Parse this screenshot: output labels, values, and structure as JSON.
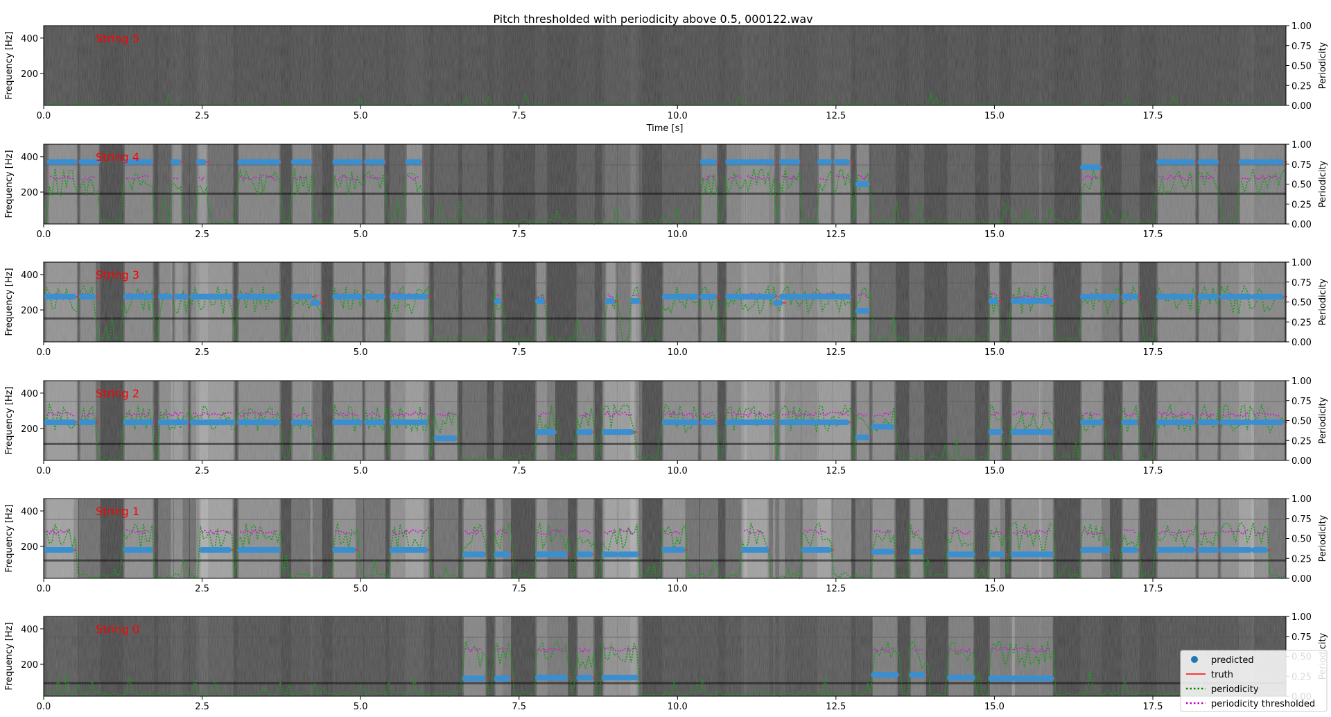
{
  "chart_data": {
    "type": "spectrogram-multipanel",
    "title": "Pitch thresholded with periodicity above 0.5, 000122.wav",
    "x_range": [
      0,
      19.6
    ],
    "x_ticks": [
      "0.0",
      "2.5",
      "5.0",
      "7.5",
      "10.0",
      "12.5",
      "15.0",
      "17.5"
    ],
    "x_tick_values": [
      0,
      2.5,
      5,
      7.5,
      10,
      12.5,
      15,
      17.5
    ],
    "xlabel": "Time [s]",
    "ylabel": "Frequency [Hz]",
    "y_range": [
      20,
      470
    ],
    "y_ticks": [
      "200",
      "400"
    ],
    "y_tick_values": [
      200,
      400
    ],
    "ylabel_right": "Periodicity",
    "y_right_range": [
      0,
      1
    ],
    "y_right_ticks": [
      "0.00",
      "0.25",
      "0.50",
      "0.75",
      "1.00"
    ],
    "y_right_tick_values": [
      0,
      0.25,
      0.5,
      0.75,
      1
    ],
    "grid": false,
    "legend_placement": "bottom-right",
    "legend": [
      {
        "label": "predicted",
        "color": "#1f77b4",
        "style": "dot"
      },
      {
        "label": "truth",
        "color": "#ff0000",
        "style": "line"
      },
      {
        "label": "periodicity",
        "color": "#008000",
        "style": "dotted"
      },
      {
        "label": "periodicity thresholded",
        "color": "#bf00bf",
        "style": "dotted"
      }
    ],
    "panels": [
      {
        "label": "String 5",
        "show_xlabel": true,
        "notes": []
      },
      {
        "label": "String 4",
        "show_xlabel": false,
        "notes": [
          {
            "t0": 0.1,
            "t1": 0.5,
            "f": 370
          },
          {
            "t0": 0.6,
            "t1": 0.85,
            "f": 370
          },
          {
            "t0": 1.3,
            "t1": 1.7,
            "f": 370
          },
          {
            "t0": 2.05,
            "t1": 2.15,
            "f": 370
          },
          {
            "t0": 2.45,
            "t1": 2.55,
            "f": 370
          },
          {
            "t0": 3.1,
            "t1": 3.7,
            "f": 370
          },
          {
            "t0": 3.95,
            "t1": 4.2,
            "f": 370
          },
          {
            "t0": 4.6,
            "t1": 5.0,
            "f": 370
          },
          {
            "t0": 5.1,
            "t1": 5.35,
            "f": 370
          },
          {
            "t0": 5.75,
            "t1": 5.95,
            "f": 370
          },
          {
            "t0": 10.4,
            "t1": 10.6,
            "f": 370
          },
          {
            "t0": 10.8,
            "t1": 11.05,
            "f": 370
          },
          {
            "t0": 11.1,
            "t1": 11.5,
            "f": 370
          },
          {
            "t0": 11.65,
            "t1": 11.9,
            "f": 370
          },
          {
            "t0": 12.25,
            "t1": 12.4,
            "f": 370
          },
          {
            "t0": 12.5,
            "t1": 12.7,
            "f": 370
          },
          {
            "t0": 12.85,
            "t1": 13.0,
            "f": 245
          },
          {
            "t0": 16.4,
            "t1": 16.65,
            "f": 340
          },
          {
            "t0": 17.6,
            "t1": 18.15,
            "f": 370
          },
          {
            "t0": 18.25,
            "t1": 18.5,
            "f": 370
          },
          {
            "t0": 18.9,
            "t1": 19.05,
            "f": 370
          },
          {
            "t0": 19.1,
            "t1": 19.55,
            "f": 370
          }
        ]
      },
      {
        "label": "String 3",
        "show_xlabel": false,
        "notes": [
          {
            "t0": 0.05,
            "t1": 0.5,
            "f": 275
          },
          {
            "t0": 0.6,
            "t1": 0.8,
            "f": 275
          },
          {
            "t0": 1.3,
            "t1": 1.7,
            "f": 275
          },
          {
            "t0": 1.85,
            "t1": 2.0,
            "f": 275
          },
          {
            "t0": 2.1,
            "t1": 2.25,
            "f": 275
          },
          {
            "t0": 2.35,
            "t1": 2.95,
            "f": 275
          },
          {
            "t0": 3.1,
            "t1": 3.7,
            "f": 275
          },
          {
            "t0": 3.95,
            "t1": 4.2,
            "f": 275
          },
          {
            "t0": 4.25,
            "t1": 4.35,
            "f": 240
          },
          {
            "t0": 4.6,
            "t1": 5.0,
            "f": 275
          },
          {
            "t0": 5.1,
            "t1": 5.35,
            "f": 275
          },
          {
            "t0": 5.5,
            "t1": 6.05,
            "f": 275
          },
          {
            "t0": 7.15,
            "t1": 7.2,
            "f": 250
          },
          {
            "t0": 7.8,
            "t1": 7.9,
            "f": 250
          },
          {
            "t0": 8.9,
            "t1": 9.0,
            "f": 250
          },
          {
            "t0": 9.3,
            "t1": 9.4,
            "f": 250
          },
          {
            "t0": 9.8,
            "t1": 10.3,
            "f": 275
          },
          {
            "t0": 10.4,
            "t1": 10.6,
            "f": 275
          },
          {
            "t0": 10.8,
            "t1": 11.5,
            "f": 275
          },
          {
            "t0": 11.55,
            "t1": 11.65,
            "f": 240
          },
          {
            "t0": 11.65,
            "t1": 11.95,
            "f": 275
          },
          {
            "t0": 12.0,
            "t1": 12.7,
            "f": 275
          },
          {
            "t0": 12.85,
            "t1": 13.0,
            "f": 195
          },
          {
            "t0": 14.95,
            "t1": 15.05,
            "f": 250
          },
          {
            "t0": 15.3,
            "t1": 15.7,
            "f": 250
          },
          {
            "t0": 15.75,
            "t1": 15.9,
            "f": 250
          },
          {
            "t0": 16.4,
            "t1": 16.95,
            "f": 275
          },
          {
            "t0": 17.05,
            "t1": 17.25,
            "f": 275
          },
          {
            "t0": 17.6,
            "t1": 18.15,
            "f": 275
          },
          {
            "t0": 18.25,
            "t1": 18.5,
            "f": 275
          },
          {
            "t0": 18.6,
            "t1": 19.05,
            "f": 275
          },
          {
            "t0": 19.1,
            "t1": 19.55,
            "f": 275
          }
        ]
      },
      {
        "label": "String 2",
        "show_xlabel": false,
        "notes": [
          {
            "t0": 0.05,
            "t1": 0.5,
            "f": 235
          },
          {
            "t0": 0.6,
            "t1": 0.8,
            "f": 235
          },
          {
            "t0": 1.3,
            "t1": 1.7,
            "f": 235
          },
          {
            "t0": 1.85,
            "t1": 2.25,
            "f": 235
          },
          {
            "t0": 2.35,
            "t1": 3.0,
            "f": 235
          },
          {
            "t0": 3.1,
            "t1": 3.7,
            "f": 235
          },
          {
            "t0": 3.95,
            "t1": 4.2,
            "f": 235
          },
          {
            "t0": 4.6,
            "t1": 5.0,
            "f": 235
          },
          {
            "t0": 5.1,
            "t1": 5.35,
            "f": 235
          },
          {
            "t0": 5.5,
            "t1": 6.05,
            "f": 235
          },
          {
            "t0": 6.2,
            "t1": 6.5,
            "f": 145
          },
          {
            "t0": 7.8,
            "t1": 8.05,
            "f": 180
          },
          {
            "t0": 8.45,
            "t1": 8.65,
            "f": 180
          },
          {
            "t0": 8.85,
            "t1": 9.3,
            "f": 180
          },
          {
            "t0": 9.8,
            "t1": 10.3,
            "f": 235
          },
          {
            "t0": 10.4,
            "t1": 10.6,
            "f": 235
          },
          {
            "t0": 10.8,
            "t1": 11.5,
            "f": 235
          },
          {
            "t0": 11.65,
            "t1": 12.2,
            "f": 235
          },
          {
            "t0": 12.25,
            "t1": 12.7,
            "f": 235
          },
          {
            "t0": 12.85,
            "t1": 13.0,
            "f": 150
          },
          {
            "t0": 13.1,
            "t1": 13.4,
            "f": 210
          },
          {
            "t0": 14.95,
            "t1": 15.1,
            "f": 180
          },
          {
            "t0": 15.3,
            "t1": 15.7,
            "f": 180
          },
          {
            "t0": 15.75,
            "t1": 15.9,
            "f": 180
          },
          {
            "t0": 16.4,
            "t1": 16.7,
            "f": 235
          },
          {
            "t0": 17.05,
            "t1": 17.25,
            "f": 235
          },
          {
            "t0": 17.6,
            "t1": 18.15,
            "f": 235
          },
          {
            "t0": 18.25,
            "t1": 18.5,
            "f": 235
          },
          {
            "t0": 18.6,
            "t1": 19.05,
            "f": 235
          },
          {
            "t0": 19.1,
            "t1": 19.55,
            "f": 235
          }
        ]
      },
      {
        "label": "String 1",
        "show_xlabel": false,
        "notes": [
          {
            "t0": 0.05,
            "t1": 0.45,
            "f": 180
          },
          {
            "t0": 1.3,
            "t1": 1.7,
            "f": 180
          },
          {
            "t0": 2.5,
            "t1": 2.95,
            "f": 180
          },
          {
            "t0": 3.1,
            "t1": 3.7,
            "f": 180
          },
          {
            "t0": 4.6,
            "t1": 4.9,
            "f": 180
          },
          {
            "t0": 5.5,
            "t1": 6.05,
            "f": 180
          },
          {
            "t0": 6.65,
            "t1": 6.95,
            "f": 155
          },
          {
            "t0": 7.15,
            "t1": 7.35,
            "f": 155
          },
          {
            "t0": 7.8,
            "t1": 8.25,
            "f": 155
          },
          {
            "t0": 8.45,
            "t1": 8.65,
            "f": 155
          },
          {
            "t0": 8.85,
            "t1": 9.05,
            "f": 155
          },
          {
            "t0": 9.1,
            "t1": 9.35,
            "f": 155
          },
          {
            "t0": 9.8,
            "t1": 10.1,
            "f": 180
          },
          {
            "t0": 11.05,
            "t1": 11.4,
            "f": 180
          },
          {
            "t0": 12.0,
            "t1": 12.4,
            "f": 180
          },
          {
            "t0": 13.1,
            "t1": 13.4,
            "f": 170
          },
          {
            "t0": 13.7,
            "t1": 13.85,
            "f": 170
          },
          {
            "t0": 14.3,
            "t1": 14.65,
            "f": 155
          },
          {
            "t0": 14.95,
            "t1": 15.15,
            "f": 155
          },
          {
            "t0": 15.3,
            "t1": 15.9,
            "f": 155
          },
          {
            "t0": 16.4,
            "t1": 16.8,
            "f": 180
          },
          {
            "t0": 17.05,
            "t1": 17.25,
            "f": 180
          },
          {
            "t0": 17.6,
            "t1": 18.15,
            "f": 180
          },
          {
            "t0": 18.25,
            "t1": 18.5,
            "f": 180
          },
          {
            "t0": 18.6,
            "t1": 19.05,
            "f": 180
          },
          {
            "t0": 19.1,
            "t1": 19.3,
            "f": 180
          }
        ]
      },
      {
        "label": "String 0",
        "show_xlabel": false,
        "notes": [
          {
            "t0": 6.65,
            "t1": 6.95,
            "f": 120
          },
          {
            "t0": 7.15,
            "t1": 7.35,
            "f": 120
          },
          {
            "t0": 7.8,
            "t1": 8.25,
            "f": 125
          },
          {
            "t0": 8.45,
            "t1": 8.65,
            "f": 125
          },
          {
            "t0": 8.85,
            "t1": 9.35,
            "f": 125
          },
          {
            "t0": 13.1,
            "t1": 13.45,
            "f": 140
          },
          {
            "t0": 13.7,
            "t1": 13.9,
            "f": 140
          },
          {
            "t0": 14.3,
            "t1": 14.65,
            "f": 125
          },
          {
            "t0": 14.95,
            "t1": 15.3,
            "f": 120
          },
          {
            "t0": 15.3,
            "t1": 15.9,
            "f": 120
          }
        ]
      }
    ]
  }
}
